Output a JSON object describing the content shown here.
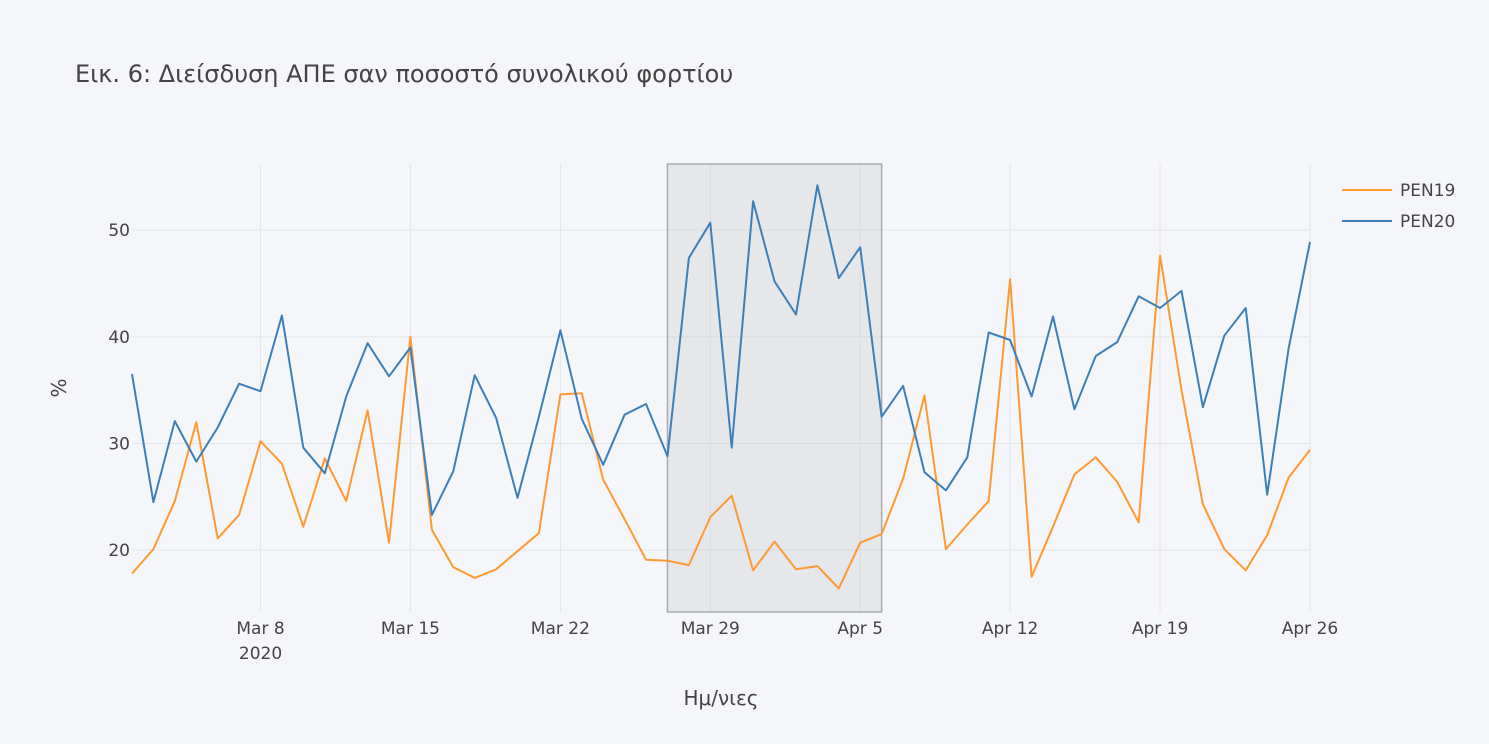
{
  "chart_data": {
    "type": "line",
    "title": "Εικ. 6: Διείσδυση ΑΠΕ σαν ποσοστό συνολικού φορτίου",
    "xlabel": "Ημ/νιες",
    "ylabel": "%",
    "x_start": "2020-03-02",
    "x_end": "2020-04-26",
    "xlim": [
      "2020-03-02",
      "2020-04-26"
    ],
    "ylim": [
      14.2,
      56.2
    ],
    "y_ticks": [
      20,
      30,
      40,
      50
    ],
    "y_tick_labels": [
      "20",
      "30",
      "40",
      "50"
    ],
    "x_ticks": [
      "2020-03-08",
      "2020-03-15",
      "2020-03-22",
      "2020-03-29",
      "2020-04-05",
      "2020-04-12",
      "2020-04-19",
      "2020-04-26"
    ],
    "x_tick_labels": [
      "Mar 8",
      "Mar 15",
      "Mar 22",
      "Mar 29",
      "Apr 5",
      "Apr 12",
      "Apr 19",
      "Apr 26"
    ],
    "x_tick_sublabel": "2020",
    "grid": true,
    "legend_position": "top-right",
    "highlight_range": [
      "2020-03-27",
      "2020-04-06"
    ],
    "series": [
      {
        "name": "PEN19",
        "color": "#ff9933",
        "values": [
          17.8,
          20.1,
          24.6,
          32.0,
          21.1,
          23.3,
          30.2,
          28.1,
          22.2,
          28.6,
          24.6,
          33.1,
          20.7,
          40.0,
          21.9,
          18.4,
          17.4,
          18.2,
          19.9,
          21.6,
          34.6,
          34.7,
          26.6,
          22.9,
          19.1,
          19.0,
          18.6,
          23.1,
          25.1,
          18.1,
          20.8,
          18.2,
          18.5,
          16.4,
          20.7,
          21.5,
          26.7,
          34.5,
          20.1,
          22.4,
          24.6,
          45.4,
          17.5,
          22.2,
          27.1,
          28.7,
          26.4,
          22.6,
          47.6,
          35.0,
          24.3,
          20.1,
          18.1,
          21.4,
          26.8,
          29.4
        ]
      },
      {
        "name": "PEN20",
        "color": "#3d7fb8",
        "values": [
          36.5,
          24.5,
          32.1,
          28.3,
          31.5,
          35.6,
          34.9,
          42.0,
          29.6,
          27.2,
          34.4,
          39.4,
          36.3,
          39.0,
          23.3,
          27.4,
          36.4,
          32.4,
          24.9,
          32.5,
          40.6,
          32.3,
          28.0,
          32.7,
          33.7,
          28.8,
          47.4,
          50.7,
          29.6,
          52.7,
          45.2,
          42.1,
          54.2,
          45.5,
          48.4,
          32.5,
          35.4,
          27.3,
          25.6,
          28.7,
          40.4,
          39.7,
          34.4,
          41.9,
          33.2,
          38.2,
          39.5,
          43.8,
          42.7,
          44.3,
          33.4,
          40.1,
          42.7,
          25.2,
          38.9,
          48.9
        ]
      }
    ]
  }
}
